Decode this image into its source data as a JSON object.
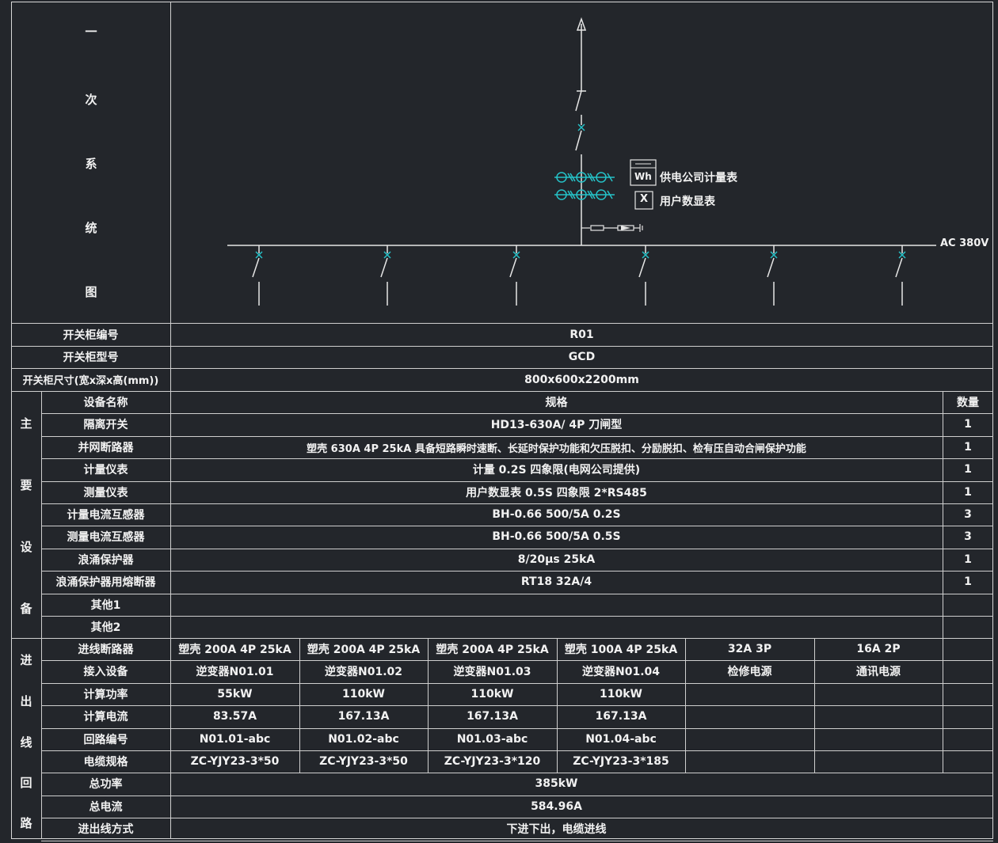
{
  "colors": {
    "background": "#23262b",
    "line": "#cfcfcf",
    "cyan": "#25c2c8",
    "text": "#f2f2f2"
  },
  "left_labels": {
    "diagram_chars": [
      "一",
      "次",
      "系",
      "统",
      "图"
    ]
  },
  "diagram": {
    "bus_label": "AC 380V",
    "meter_symbol_wh": "Wh",
    "meter_label_supply": "供电公司计量表",
    "meter_symbol_x": "X",
    "meter_label_user": "用户数显表",
    "outgoing_count": 6
  },
  "cabinet": {
    "number_label": "开关柜编号",
    "number_value": "R01",
    "model_label": "开关柜型号",
    "model_value": "GCD",
    "size_label": "开关柜尺寸(宽x深x高(mm))",
    "size_value": "800x600x2200mm"
  },
  "main_equipment": {
    "section_chars": [
      "主",
      "要",
      "设",
      "备"
    ],
    "header": {
      "name": "设备名称",
      "spec": "规格",
      "qty": "数量"
    },
    "rows": [
      {
        "name": "隔离开关",
        "spec": "HD13-630A/ 4P 刀闸型",
        "qty": "1"
      },
      {
        "name": "并网断路器",
        "spec": "塑壳 630A 4P 25kA 具备短路瞬时速断、长延时保护功能和欠压脱扣、分励脱扣、检有压自动合闸保护功能",
        "qty": "1"
      },
      {
        "name": "计量仪表",
        "spec": "计量 0.2S 四象限(电网公司提供)",
        "qty": "1"
      },
      {
        "name": "测量仪表",
        "spec": "用户数显表 0.5S 四象限 2*RS485",
        "qty": "1"
      },
      {
        "name": "计量电流互感器",
        "spec": "BH-0.66 500/5A 0.2S",
        "qty": "3"
      },
      {
        "name": "测量电流互感器",
        "spec": "BH-0.66 500/5A 0.5S",
        "qty": "3"
      },
      {
        "name": "浪涌保护器",
        "spec": "8/20μs 25kA",
        "qty": "1"
      },
      {
        "name": "浪涌保护器用熔断器",
        "spec": "RT18 32A/4",
        "qty": "1"
      },
      {
        "name": "其他1",
        "spec": "",
        "qty": ""
      },
      {
        "name": "其他2",
        "spec": "",
        "qty": ""
      }
    ]
  },
  "circuits": {
    "section_chars": [
      "进",
      "出",
      "线",
      "回",
      "路"
    ],
    "rows": [
      {
        "label": "进线断路器",
        "cells": [
          "塑壳 200A 4P 25kA",
          "塑壳 200A 4P 25kA",
          "塑壳 200A 4P 25kA",
          "塑壳 100A 4P 25kA",
          "32A 3P",
          "16A 2P",
          ""
        ]
      },
      {
        "label": "接入设备",
        "cells": [
          "逆变器N01.01",
          "逆变器N01.02",
          "逆变器N01.03",
          "逆变器N01.04",
          "检修电源",
          "通讯电源",
          ""
        ]
      },
      {
        "label": "计算功率",
        "cells": [
          "55kW",
          "110kW",
          "110kW",
          "110kW",
          "",
          "",
          ""
        ]
      },
      {
        "label": "计算电流",
        "cells": [
          "83.57A",
          "167.13A",
          "167.13A",
          "167.13A",
          "",
          "",
          ""
        ]
      },
      {
        "label": "回路编号",
        "cells": [
          "N01.01-abc",
          "N01.02-abc",
          "N01.03-abc",
          "N01.04-abc",
          "",
          "",
          ""
        ]
      },
      {
        "label": "电缆规格",
        "cells": [
          "ZC-YJY23-3*50",
          "ZC-YJY23-3*50",
          "ZC-YJY23-3*120",
          "ZC-YJY23-3*185",
          "",
          "",
          ""
        ]
      }
    ],
    "total_power_label": "总功率",
    "total_power_value": "385kW",
    "total_current_label": "总电流",
    "total_current_value": "584.96A",
    "wiring_label": "进出线方式",
    "wiring_value": "下进下出，电缆进线"
  }
}
